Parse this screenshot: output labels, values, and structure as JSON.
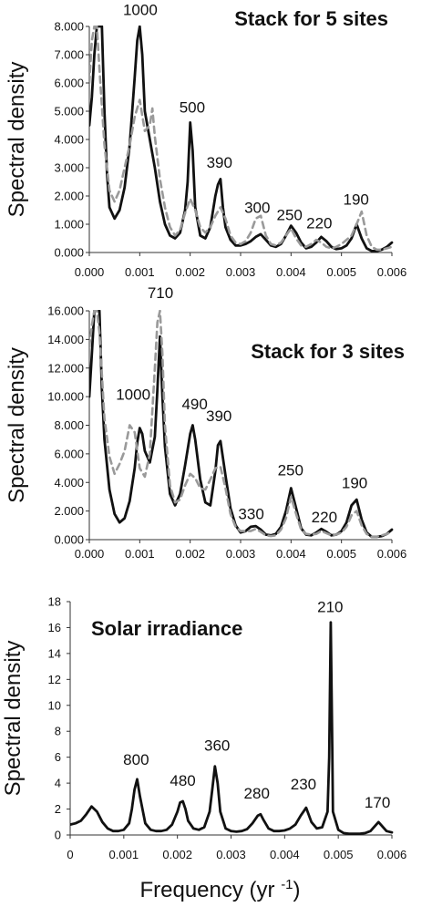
{
  "chart_data": [
    {
      "type": "line",
      "title": "Stack for 5 sites",
      "ylabel": "Spectral density",
      "xlim": [
        0,
        0.006
      ],
      "ylim": [
        0,
        8
      ],
      "x_ticks": [
        "0.000",
        "0.001",
        "0.002",
        "0.003",
        "0.004",
        "0.005",
        "0.006"
      ],
      "y_ticks": [
        "0.000",
        "1.000",
        "2.000",
        "3.000",
        "4.000",
        "5.000",
        "6.000",
        "7.000",
        "8.000"
      ],
      "peak_labels": [
        {
          "text": "1000",
          "x": 0.00101,
          "y": 8.4
        },
        {
          "text": "500",
          "x": 0.00204,
          "y": 4.95
        },
        {
          "text": "390",
          "x": 0.00258,
          "y": 3.0
        },
        {
          "text": "300",
          "x": 0.00333,
          "y": 1.4
        },
        {
          "text": "250",
          "x": 0.00397,
          "y": 1.15
        },
        {
          "text": "220",
          "x": 0.00456,
          "y": 0.85
        },
        {
          "text": "190",
          "x": 0.00529,
          "y": 1.7
        }
      ],
      "series": [
        {
          "style": "solid",
          "x": [
            0,
            5e-05,
            0.0001,
            0.00015,
            0.0002,
            0.00025,
            0.0003,
            0.00035,
            0.0004,
            0.0005,
            0.0006,
            0.0007,
            0.0008,
            0.0009,
            0.00095,
            0.001,
            0.00105,
            0.0011,
            0.0012,
            0.0013,
            0.0014,
            0.0015,
            0.0016,
            0.0017,
            0.0018,
            0.0019,
            0.00195,
            0.002,
            0.00205,
            0.0021,
            0.0022,
            0.0023,
            0.0024,
            0.0025,
            0.00255,
            0.0026,
            0.00265,
            0.0027,
            0.0028,
            0.0029,
            0.003,
            0.0031,
            0.0032,
            0.0033,
            0.0034,
            0.0035,
            0.0036,
            0.0037,
            0.0038,
            0.0039,
            0.004,
            0.0041,
            0.0042,
            0.0043,
            0.0044,
            0.0045,
            0.0046,
            0.0047,
            0.0048,
            0.0049,
            0.005,
            0.0051,
            0.0052,
            0.0053,
            0.0054,
            0.0055,
            0.0056,
            0.0057,
            0.0058,
            0.0059,
            0.006
          ],
          "y": [
            4.5,
            5.5,
            7.0,
            8.0,
            8.0,
            8.0,
            5.0,
            2.8,
            1.6,
            1.2,
            1.5,
            2.3,
            3.8,
            6.2,
            7.5,
            8.0,
            7.0,
            5.0,
            4.0,
            3.0,
            1.8,
            1.0,
            0.6,
            0.5,
            0.7,
            1.5,
            2.5,
            4.6,
            3.6,
            1.6,
            0.6,
            0.5,
            0.9,
            2.0,
            2.4,
            2.6,
            1.6,
            0.9,
            0.45,
            0.25,
            0.25,
            0.3,
            0.4,
            0.55,
            0.65,
            0.45,
            0.25,
            0.2,
            0.3,
            0.6,
            0.95,
            0.7,
            0.35,
            0.15,
            0.2,
            0.35,
            0.55,
            0.4,
            0.2,
            0.12,
            0.15,
            0.25,
            0.5,
            1.0,
            0.5,
            0.15,
            0.05,
            0.05,
            0.1,
            0.2,
            0.35
          ]
        },
        {
          "style": "dashed",
          "x": [
            0,
            5e-05,
            0.0001,
            0.00015,
            0.0002,
            0.0003,
            0.0004,
            0.0005,
            0.0006,
            0.0007,
            0.0008,
            0.0009,
            0.001,
            0.0011,
            0.0012,
            0.00125,
            0.0013,
            0.0014,
            0.0015,
            0.0016,
            0.0017,
            0.0018,
            0.0019,
            0.002,
            0.0021,
            0.0022,
            0.0023,
            0.0024,
            0.0025,
            0.0026,
            0.0027,
            0.0028,
            0.0029,
            0.003,
            0.0031,
            0.0032,
            0.0033,
            0.0034,
            0.0035,
            0.0036,
            0.0037,
            0.0038,
            0.0039,
            0.004,
            0.0041,
            0.0042,
            0.0043,
            0.0044,
            0.0045,
            0.0046,
            0.0047,
            0.0048,
            0.0049,
            0.005,
            0.0051,
            0.0052,
            0.0053,
            0.0054,
            0.0055,
            0.0056,
            0.0057,
            0.0058,
            0.0059,
            0.006
          ],
          "y": [
            6.0,
            7.5,
            8.0,
            8.0,
            6.5,
            3.8,
            2.2,
            1.8,
            2.2,
            3.0,
            3.8,
            4.8,
            5.4,
            4.3,
            4.5,
            5.1,
            4.1,
            2.6,
            1.6,
            0.9,
            0.6,
            0.8,
            1.4,
            1.9,
            1.5,
            0.9,
            0.7,
            0.9,
            1.3,
            1.6,
            1.2,
            0.6,
            0.35,
            0.3,
            0.4,
            0.7,
            1.2,
            1.3,
            0.6,
            0.3,
            0.25,
            0.35,
            0.6,
            0.85,
            0.5,
            0.25,
            0.2,
            0.3,
            0.45,
            0.35,
            0.2,
            0.15,
            0.2,
            0.3,
            0.45,
            0.6,
            1.0,
            1.45,
            0.6,
            0.2,
            0.1,
            0.1,
            0.15,
            0.2
          ]
        }
      ]
    },
    {
      "type": "line",
      "title": "Stack for 3 sites",
      "ylabel": "Spectral density",
      "xlim": [
        0,
        0.006
      ],
      "ylim": [
        0,
        16
      ],
      "x_ticks": [
        "0.000",
        "0.001",
        "0.002",
        "0.003",
        "0.004",
        "0.005",
        "0.006"
      ],
      "y_ticks": [
        "0.000",
        "2.000",
        "4.000",
        "6.000",
        "8.000",
        "10.000",
        "12.000",
        "14.000",
        "16.000"
      ],
      "peak_labels": [
        {
          "text": "710",
          "x": 0.00141,
          "y": 16.9
        },
        {
          "text": "1000",
          "x": 0.00087,
          "y": 9.8
        },
        {
          "text": "490",
          "x": 0.00209,
          "y": 9.1
        },
        {
          "text": "390",
          "x": 0.00257,
          "y": 8.3
        },
        {
          "text": "330",
          "x": 0.00321,
          "y": 1.45
        },
        {
          "text": "250",
          "x": 0.00399,
          "y": 4.5
        },
        {
          "text": "220",
          "x": 0.00466,
          "y": 1.2
        },
        {
          "text": "190",
          "x": 0.00526,
          "y": 3.6
        }
      ],
      "series": [
        {
          "style": "solid",
          "x": [
            0,
            5e-05,
            0.0001,
            0.00015,
            0.0002,
            0.00025,
            0.0003,
            0.0004,
            0.0005,
            0.0006,
            0.0007,
            0.0008,
            0.0009,
            0.00095,
            0.001,
            0.00105,
            0.0011,
            0.0012,
            0.0013,
            0.00135,
            0.0014,
            0.00145,
            0.0015,
            0.0016,
            0.0017,
            0.0018,
            0.0019,
            0.002,
            0.00205,
            0.0021,
            0.0022,
            0.0023,
            0.0024,
            0.0025,
            0.00255,
            0.0026,
            0.0027,
            0.0028,
            0.0029,
            0.003,
            0.0031,
            0.0032,
            0.0033,
            0.0034,
            0.0035,
            0.0036,
            0.0037,
            0.0038,
            0.0039,
            0.004,
            0.0041,
            0.0042,
            0.0043,
            0.0044,
            0.0045,
            0.0046,
            0.0047,
            0.0048,
            0.0049,
            0.005,
            0.0051,
            0.0052,
            0.0053,
            0.0054,
            0.0055,
            0.0056,
            0.0057,
            0.0058,
            0.0059,
            0.006
          ],
          "y": [
            10.0,
            13.0,
            16.0,
            16.0,
            16.0,
            10.5,
            7.0,
            3.5,
            1.8,
            1.2,
            1.5,
            2.7,
            5.0,
            6.8,
            7.8,
            7.4,
            6.2,
            5.4,
            7.2,
            10.5,
            14.2,
            10.0,
            6.5,
            3.2,
            2.4,
            3.2,
            5.2,
            7.4,
            8.0,
            7.0,
            4.2,
            2.6,
            2.4,
            4.8,
            6.6,
            6.9,
            4.5,
            2.2,
            1.0,
            0.5,
            0.6,
            0.9,
            0.95,
            0.7,
            0.35,
            0.3,
            0.4,
            0.9,
            2.0,
            3.6,
            2.2,
            0.8,
            0.35,
            0.3,
            0.5,
            0.75,
            0.55,
            0.3,
            0.35,
            0.6,
            1.2,
            2.4,
            2.8,
            1.4,
            0.5,
            0.2,
            0.2,
            0.25,
            0.4,
            0.7
          ]
        },
        {
          "style": "dashed",
          "x": [
            0,
            5e-05,
            0.0001,
            0.00015,
            0.0002,
            0.0003,
            0.0004,
            0.0005,
            0.0006,
            0.0007,
            0.0008,
            0.0009,
            0.001,
            0.0011,
            0.0012,
            0.0013,
            0.00135,
            0.0014,
            0.00145,
            0.0015,
            0.0016,
            0.0017,
            0.0018,
            0.0019,
            0.002,
            0.0021,
            0.0022,
            0.0023,
            0.0024,
            0.0025,
            0.0026,
            0.0027,
            0.0028,
            0.0029,
            0.003,
            0.0031,
            0.0032,
            0.0033,
            0.0034,
            0.0035,
            0.0036,
            0.0037,
            0.0038,
            0.0039,
            0.004,
            0.0041,
            0.0042,
            0.0043,
            0.0044,
            0.0045,
            0.0046,
            0.0047,
            0.0048,
            0.0049,
            0.005,
            0.0051,
            0.0052,
            0.0053,
            0.0054,
            0.0055,
            0.0056,
            0.0057,
            0.0058,
            0.0059,
            0.006
          ],
          "y": [
            13.5,
            15.0,
            16.0,
            16.0,
            14.5,
            8.5,
            5.8,
            4.6,
            5.3,
            6.2,
            8.0,
            7.5,
            5.0,
            4.4,
            6.0,
            12.0,
            15.2,
            16.0,
            13.0,
            8.0,
            3.8,
            2.6,
            2.8,
            3.8,
            4.6,
            4.3,
            3.6,
            3.5,
            4.2,
            5.0,
            5.1,
            3.6,
            1.8,
            0.9,
            0.6,
            0.6,
            0.6,
            0.75,
            0.55,
            0.3,
            0.25,
            0.3,
            0.7,
            1.5,
            3.0,
            1.8,
            0.7,
            0.4,
            0.35,
            0.4,
            0.6,
            0.45,
            0.3,
            0.35,
            0.5,
            0.9,
            1.7,
            2.0,
            1.0,
            0.4,
            0.2,
            0.2,
            0.3,
            0.4,
            0.55
          ]
        }
      ]
    },
    {
      "type": "line",
      "title": "Solar irradiance",
      "ylabel": "Spectral density",
      "xlabel": "Frequency (yr -1)",
      "xlim": [
        0,
        0.006
      ],
      "ylim": [
        0,
        18
      ],
      "x_ticks": [
        "0",
        "0.001",
        "0.002",
        "0.003",
        "0.004",
        "0.005",
        "0.006"
      ],
      "y_ticks": [
        "0",
        "2",
        "4",
        "6",
        "8",
        "10",
        "12",
        "14",
        "16",
        "18"
      ],
      "peak_labels": [
        {
          "text": "210",
          "x": 0.00485,
          "y": 17.2
        },
        {
          "text": "800",
          "x": 0.00123,
          "y": 5.4
        },
        {
          "text": "480",
          "x": 0.0021,
          "y": 3.8
        },
        {
          "text": "360",
          "x": 0.00274,
          "y": 6.5
        },
        {
          "text": "280",
          "x": 0.00348,
          "y": 2.8
        },
        {
          "text": "230",
          "x": 0.00435,
          "y": 3.5
        },
        {
          "text": "170",
          "x": 0.00573,
          "y": 2.1
        }
      ],
      "series": [
        {
          "style": "solid",
          "x": [
            0,
            0.0001,
            0.0002,
            0.0003,
            0.0004,
            0.0005,
            0.0006,
            0.0007,
            0.0008,
            0.0009,
            0.001,
            0.0011,
            0.00115,
            0.0012,
            0.00125,
            0.0013,
            0.0014,
            0.0015,
            0.0016,
            0.0017,
            0.0018,
            0.0019,
            0.002,
            0.00205,
            0.0021,
            0.00215,
            0.0022,
            0.0023,
            0.0024,
            0.0025,
            0.0026,
            0.00265,
            0.0027,
            0.00275,
            0.0028,
            0.0029,
            0.003,
            0.0031,
            0.0032,
            0.0033,
            0.0034,
            0.0035,
            0.00355,
            0.0036,
            0.0037,
            0.0038,
            0.0039,
            0.004,
            0.0041,
            0.0042,
            0.0043,
            0.0044,
            0.0045,
            0.0046,
            0.0047,
            0.0048,
            0.00483,
            0.00486,
            0.00489,
            0.0049,
            0.005,
            0.0051,
            0.0052,
            0.0053,
            0.0054,
            0.0055,
            0.0056,
            0.00575,
            0.0059,
            0.006
          ],
          "y": [
            0.8,
            0.9,
            1.1,
            1.6,
            2.2,
            1.8,
            1.0,
            0.5,
            0.3,
            0.3,
            0.4,
            0.9,
            2.0,
            3.5,
            4.3,
            3.0,
            0.9,
            0.4,
            0.3,
            0.3,
            0.4,
            0.8,
            1.8,
            2.5,
            2.6,
            2.0,
            1.1,
            0.5,
            0.4,
            0.6,
            1.8,
            3.5,
            5.3,
            4.0,
            1.8,
            0.5,
            0.3,
            0.25,
            0.3,
            0.45,
            0.9,
            1.5,
            1.6,
            1.2,
            0.5,
            0.3,
            0.3,
            0.35,
            0.5,
            0.8,
            1.5,
            2.1,
            1.0,
            0.5,
            0.6,
            1.8,
            6.0,
            16.4,
            6.0,
            1.8,
            0.4,
            0.15,
            0.1,
            0.1,
            0.1,
            0.15,
            0.3,
            1.0,
            0.3,
            0.2
          ]
        }
      ]
    }
  ]
}
